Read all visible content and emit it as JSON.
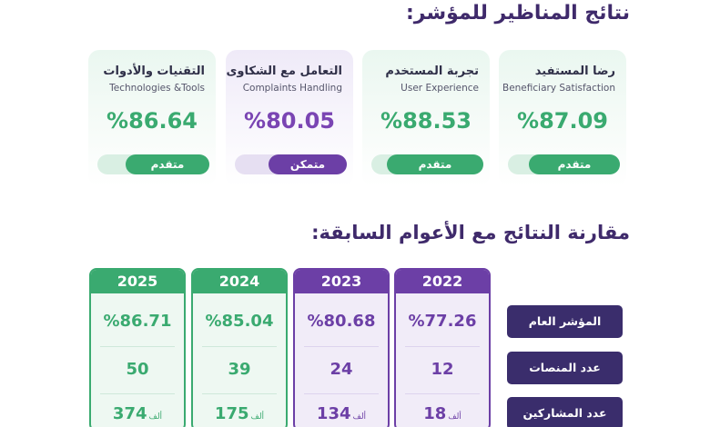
{
  "title_results": "نتائج المناظير للمؤشر:",
  "title_comparison": "مقارنة النتائج مع الأعوام السابقة:",
  "perspectives": [
    {
      "ar": "رضا المستفيد",
      "en": "Beneficiary Satisfaction",
      "value": "%87.09",
      "level": "متقدم",
      "color": "green"
    },
    {
      "ar": "تجربة المستخدم",
      "en": "User Experience",
      "value": "%88.53",
      "level": "متقدم",
      "color": "green"
    },
    {
      "ar": "التعامل مع الشكاوى",
      "en": "Complaints Handling",
      "value": "%80.05",
      "level": "متمكن",
      "color": "purple"
    },
    {
      "ar": "التقنيات والأدوات",
      "en": "Technologies &Tools",
      "value": "%86.64",
      "level": "متقدم",
      "color": "green"
    }
  ],
  "row_labels": [
    "المؤشر العام",
    "عدد المنصات",
    "عدد المشاركين"
  ],
  "years": [
    {
      "year": "2022",
      "index": "%77.26",
      "platforms": "12",
      "participants": "18",
      "unit": "ألف",
      "color": "purple"
    },
    {
      "year": "2023",
      "index": "%80.68",
      "platforms": "24",
      "participants": "134",
      "unit": "ألف",
      "color": "purple"
    },
    {
      "year": "2024",
      "index": "%85.04",
      "platforms": "39",
      "participants": "175",
      "unit": "ألف",
      "color": "green"
    },
    {
      "year": "2025",
      "index": "%86.71",
      "platforms": "50",
      "participants": "374",
      "unit": "ألف",
      "color": "green"
    }
  ],
  "colors": {
    "green": "#3aaa70",
    "purple": "#6c3fa6",
    "navy": "#3a2d6c",
    "title": "#3f2a6b"
  }
}
